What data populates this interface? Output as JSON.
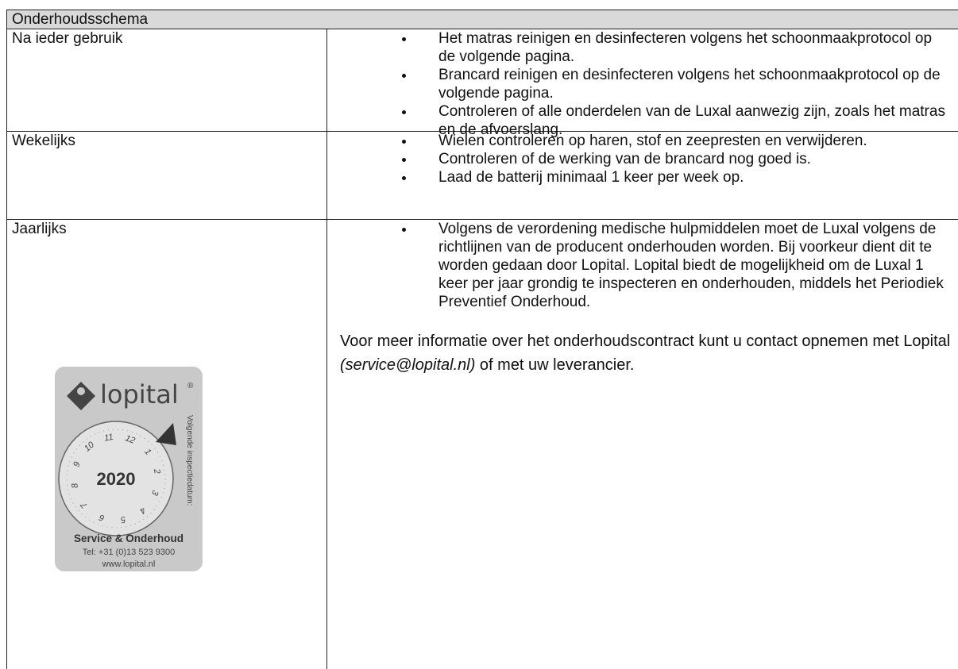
{
  "table": {
    "title": "Onderhoudsschema",
    "rows": [
      {
        "label": "Na ieder gebruik",
        "items": [
          "Het matras reinigen en desinfecteren volgens het schoonmaakprotocol op de volgende pagina.",
          "Brancard reinigen en desinfecteren volgens het schoonmaakprotocol op de volgende pagina.",
          "Controleren of alle onderdelen van de Luxal aanwezig zijn, zoals het matras en de afvoerslang."
        ]
      },
      {
        "label": "Wekelijks",
        "items": [
          "Wielen controleren op haren, stof en zeepresten en verwijderen.",
          "Controleren of de werking van de brancard nog goed is.",
          "Laad de batterij minimaal 1 keer per week op."
        ]
      },
      {
        "label": "Jaarlijks",
        "items": [
          "Volgens de verordening medische hulpmiddelen moet de Luxal volgens de richtlijnen van de producent onderhouden worden. Bij voorkeur dient dit te worden gedaan door Lopital. Lopital biedt de mogelijkheid om de Luxal 1 keer per jaar grondig te inspecteren en onderhouden, middels het Periodiek Preventief Onderhoud."
        ],
        "note": [
          "Voor meer informatie over het onderhoudscontract kunt u contact opnemen met Lopital ",
          "(service@lopital.nl)",
          " of met uw leverancier."
        ]
      }
    ]
  },
  "sticker": {
    "brand": "lopital",
    "registered": "®",
    "dial": [
      "1",
      "2",
      "3",
      "4",
      "5",
      "6",
      "7",
      "8",
      "9",
      "10",
      "11",
      "12"
    ],
    "year": "2020",
    "side_text": "Volgende inspectiedatum:",
    "service": "Service & Onderhoud",
    "tel": "Tel: +31 (0)13 523 9300",
    "web": "www.lopital.nl"
  }
}
